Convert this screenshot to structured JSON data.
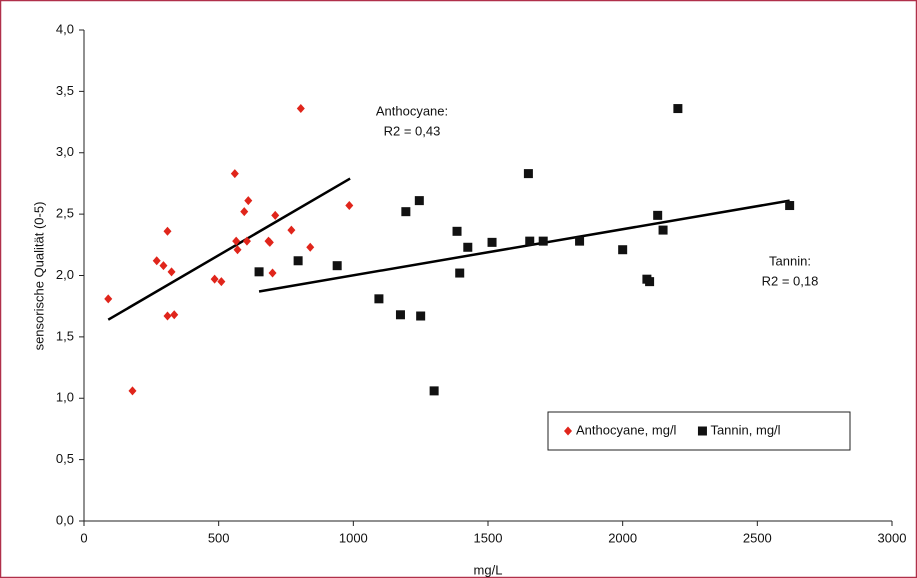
{
  "chart_data": {
    "type": "scatter",
    "xlabel": "mg/L",
    "ylabel": "sensorische Qualität (0-5)",
    "xlim": [
      0,
      3000
    ],
    "xticks": [
      0,
      500,
      1000,
      1500,
      2000,
      2500,
      3000
    ],
    "ylim": [
      0,
      4
    ],
    "yticks": [
      {
        "value": 0,
        "label": "0,0"
      },
      {
        "value": 0.5,
        "label": "0,5"
      },
      {
        "value": 1,
        "label": "1,0"
      },
      {
        "value": 1.5,
        "label": "1,5"
      },
      {
        "value": 2,
        "label": "2,0"
      },
      {
        "value": 2.5,
        "label": "2,5"
      },
      {
        "value": 3,
        "label": "3,0"
      },
      {
        "value": 3.5,
        "label": "3,5"
      },
      {
        "value": 4,
        "label": "4,0"
      }
    ],
    "legend": "lower right",
    "series": [
      {
        "name": "Anthocyane, mg/l",
        "color": "#e0251b",
        "marker": "diamond",
        "x": [
          90,
          180,
          270,
          295,
          310,
          325,
          310,
          335,
          485,
          510,
          560,
          565,
          570,
          595,
          610,
          605,
          685,
          690,
          700,
          710,
          770,
          805,
          840,
          985
        ],
        "values": [
          1.81,
          1.06,
          2.12,
          2.08,
          2.36,
          2.03,
          1.67,
          1.68,
          1.97,
          1.95,
          2.83,
          2.28,
          2.21,
          2.52,
          2.61,
          2.28,
          2.28,
          2.27,
          2.02,
          2.49,
          2.37,
          3.36,
          2.23,
          2.57
        ],
        "trendline": {
          "x": [
            90,
            988
          ],
          "values": [
            1.64,
            2.79
          ]
        },
        "annotation": [
          "Anthocyane:",
          "R2 = 0,43"
        ]
      },
      {
        "name": "Tannin, mg/l",
        "color": "#111111",
        "marker": "square",
        "x": [
          650,
          795,
          940,
          1095,
          1175,
          1195,
          1245,
          1250,
          1300,
          1385,
          1395,
          1425,
          1515,
          1650,
          1655,
          1705,
          1840,
          2000,
          2090,
          2100,
          2130,
          2150,
          2205,
          2620
        ],
        "values": [
          2.03,
          2.12,
          2.08,
          1.81,
          1.68,
          2.52,
          2.61,
          1.67,
          1.06,
          2.36,
          2.02,
          2.23,
          2.27,
          2.83,
          2.28,
          2.28,
          2.28,
          2.21,
          1.97,
          1.95,
          2.49,
          2.37,
          3.36,
          2.57
        ],
        "trendline": {
          "x": [
            650,
            2620
          ],
          "values": [
            1.87,
            2.61
          ]
        },
        "annotation": [
          "Tannin:",
          "R2 = 0,18"
        ]
      }
    ]
  }
}
